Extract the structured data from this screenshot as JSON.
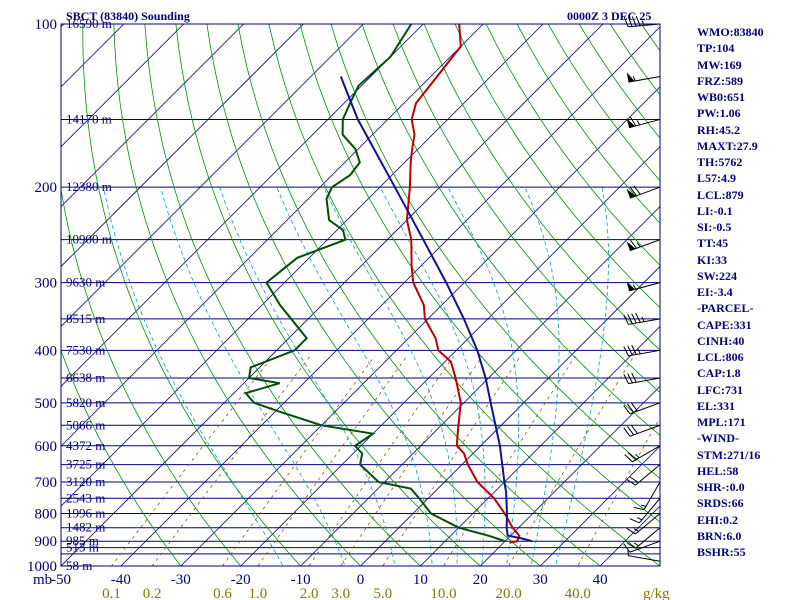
{
  "header": {
    "station_title": "SBCT (83840) Sounding",
    "time_label": "0000Z  3 DEC 25"
  },
  "sidebar": {
    "items": [
      "WMO:83840",
      "TP:104",
      "MW:169",
      "FRZ:589",
      "WB0:651",
      "PW:1.06",
      "RH:45.2",
      "MAXT:27.9",
      "TH:5762",
      "L57:4.9",
      "LCL:879",
      "LI:-0.1",
      "SI:-0.5",
      "TT:45",
      "KI:33",
      "SW:224",
      "EI:-3.4",
      "-PARCEL-",
      "CAPE:331",
      "CINH:40",
      "LCL:806",
      "CAP:1.8",
      "LFC:731",
      "EL:331",
      "MPL:171",
      "-WIND-",
      "STM:271/16",
      "HEL:58",
      "SHR-:0.0",
      "SRDS:66",
      "EHI:0.2",
      "BRN:6.0",
      "BSHR:55"
    ]
  },
  "chart_data": {
    "type": "line",
    "title": "SBCT (83840) Sounding",
    "subtitle": "0000Z  3 DEC 25",
    "y_axis_unit": "mb",
    "y_scale": "log-pressure",
    "ylim": [
      1000,
      100
    ],
    "xlim": [
      -50,
      50
    ],
    "skew": true,
    "pressure_ticks": [
      100,
      200,
      300,
      400,
      500,
      600,
      700,
      800,
      900,
      1000
    ],
    "pressure_tick_labels": [
      "100",
      "200",
      "300",
      "400",
      "500",
      "600",
      "700",
      "800",
      "900",
      "1000"
    ],
    "temperature_ticks": [
      -50,
      -40,
      -30,
      -20,
      -10,
      0,
      10,
      20,
      30,
      40
    ],
    "temperature_tick_labels": [
      "-50",
      "-40",
      "-30",
      "-20",
      "-10",
      "0",
      "10",
      "20",
      "30",
      "40"
    ],
    "mixing_ratio_ticks": [
      0.1,
      0.2,
      0.6,
      1.0,
      2.0,
      3.0,
      5.0,
      10.0,
      20.0,
      40.0
    ],
    "mixing_ratio_tick_labels": [
      "0.1",
      "0.2",
      "0.6",
      "1.0",
      "2.0",
      "3.0",
      "5.0",
      "10.0",
      "20.0",
      "40.0"
    ],
    "mixing_ratio_unit": "g/kg",
    "height_labels": [
      {
        "p": 100,
        "text": "16590 m"
      },
      {
        "p": 150,
        "text": "14170 m"
      },
      {
        "p": 200,
        "text": "12380 m"
      },
      {
        "p": 250,
        "text": "10900 m"
      },
      {
        "p": 300,
        "text": "9630 m"
      },
      {
        "p": 350,
        "text": "8515 m"
      },
      {
        "p": 400,
        "text": "7530 m"
      },
      {
        "p": 450,
        "text": "6638 m"
      },
      {
        "p": 500,
        "text": "5820 m"
      },
      {
        "p": 550,
        "text": "5066 m"
      },
      {
        "p": 600,
        "text": "4372 m"
      },
      {
        "p": 650,
        "text": "3725 m"
      },
      {
        "p": 700,
        "text": "3120 m"
      },
      {
        "p": 750,
        "text": "2543 m"
      },
      {
        "p": 800,
        "text": "1996 m"
      },
      {
        "p": 850,
        "text": "1482 m"
      },
      {
        "p": 900,
        "text": "985 m"
      },
      {
        "p": 925,
        "text": "513 m"
      },
      {
        "p": 1000,
        "text": "58 m"
      }
    ],
    "series": [
      {
        "role": "temperature",
        "color": "#c00000",
        "points": [
          [
            906,
            21.0
          ],
          [
            900,
            22.0
          ],
          [
            880,
            21.5
          ],
          [
            850,
            19.0
          ],
          [
            800,
            15.3
          ],
          [
            750,
            11.0
          ],
          [
            700,
            5.5
          ],
          [
            650,
            1.0
          ],
          [
            620,
            -1.5
          ],
          [
            600,
            -4.0
          ],
          [
            560,
            -6.5
          ],
          [
            500,
            -10.5
          ],
          [
            450,
            -15.5
          ],
          [
            420,
            -19.0
          ],
          [
            400,
            -23.0
          ],
          [
            380,
            -25.5
          ],
          [
            350,
            -30.5
          ],
          [
            330,
            -33.0
          ],
          [
            300,
            -38.5
          ],
          [
            280,
            -41.5
          ],
          [
            250,
            -46.0
          ],
          [
            230,
            -50.0
          ],
          [
            200,
            -55.0
          ],
          [
            180,
            -59.0
          ],
          [
            170,
            -61.0
          ],
          [
            160,
            -63.0
          ],
          [
            150,
            -66.0
          ],
          [
            140,
            -68.0
          ],
          [
            110,
            -70.0
          ],
          [
            100,
            -74.0
          ]
        ]
      },
      {
        "role": "dewpoint",
        "color": "#005000",
        "points": [
          [
            900,
            20.0
          ],
          [
            880,
            16.5
          ],
          [
            850,
            10.0
          ],
          [
            800,
            3.0
          ],
          [
            750,
            -1.5
          ],
          [
            720,
            -4.5
          ],
          [
            700,
            -11.0
          ],
          [
            650,
            -17.0
          ],
          [
            620,
            -18.5
          ],
          [
            600,
            -21.0
          ],
          [
            570,
            -20.0
          ],
          [
            550,
            -30.0
          ],
          [
            520,
            -39.0
          ],
          [
            500,
            -45.0
          ],
          [
            480,
            -48.0
          ],
          [
            460,
            -44.0
          ],
          [
            450,
            -50.0
          ],
          [
            430,
            -51.5
          ],
          [
            420,
            -50.0
          ],
          [
            400,
            -47.0
          ],
          [
            380,
            -47.0
          ],
          [
            330,
            -57.0
          ],
          [
            300,
            -63.0
          ],
          [
            270,
            -62.0
          ],
          [
            250,
            -57.0
          ],
          [
            240,
            -59.0
          ],
          [
            230,
            -63.0
          ],
          [
            210,
            -67.0
          ],
          [
            200,
            -68.0
          ],
          [
            190,
            -67.0
          ],
          [
            180,
            -67.5
          ],
          [
            170,
            -70.5
          ],
          [
            160,
            -75.0
          ],
          [
            150,
            -77.5
          ],
          [
            140,
            -79.0
          ],
          [
            130,
            -80.5
          ],
          [
            115,
            -80.0
          ],
          [
            100,
            -82.0
          ]
        ]
      },
      {
        "role": "parcel",
        "color": "#1010a0",
        "points": [
          [
            900,
            24.5
          ],
          [
            890,
            22.5
          ],
          [
            879,
            19.5
          ],
          [
            850,
            18.0
          ],
          [
            806,
            16.0
          ],
          [
            731,
            12.0
          ],
          [
            700,
            10.0
          ],
          [
            600,
            3.2
          ],
          [
            500,
            -5.5
          ],
          [
            450,
            -10.5
          ],
          [
            400,
            -16.5
          ],
          [
            350,
            -24.0
          ],
          [
            300,
            -33.0
          ],
          [
            250,
            -44.0
          ],
          [
            200,
            -57.5
          ],
          [
            150,
            -75.0
          ],
          [
            125,
            -85.0
          ]
        ]
      }
    ],
    "wind_barbs": [
      {
        "p": 980,
        "dir": 280,
        "kt": 5
      },
      {
        "p": 900,
        "dir": 250,
        "kt": 10
      },
      {
        "p": 850,
        "dir": 230,
        "kt": 15
      },
      {
        "p": 800,
        "dir": 230,
        "kt": 15
      },
      {
        "p": 750,
        "dir": 220,
        "kt": 15
      },
      {
        "p": 700,
        "dir": 210,
        "kt": 15
      },
      {
        "p": 650,
        "dir": 230,
        "kt": 20
      },
      {
        "p": 600,
        "dir": 240,
        "kt": 25
      },
      {
        "p": 550,
        "dir": 250,
        "kt": 30
      },
      {
        "p": 500,
        "dir": 250,
        "kt": 30
      },
      {
        "p": 450,
        "dir": 260,
        "kt": 30
      },
      {
        "p": 400,
        "dir": 260,
        "kt": 35
      },
      {
        "p": 350,
        "dir": 260,
        "kt": 45
      },
      {
        "p": 300,
        "dir": 255,
        "kt": 55
      },
      {
        "p": 250,
        "dir": 250,
        "kt": 65
      },
      {
        "p": 200,
        "dir": 250,
        "kt": 70
      },
      {
        "p": 150,
        "dir": 255,
        "kt": 65
      },
      {
        "p": 125,
        "dir": 260,
        "kt": 55
      },
      {
        "p": 100,
        "dir": 265,
        "kt": 45
      }
    ],
    "grid": true
  },
  "colors": {
    "frame": "#000080",
    "isotherm": "#000080",
    "dry_adiabat": "#009000",
    "moist_adiabat": "#00a0c0",
    "mixing_ratio": "#806000",
    "mixing_ratio_label": "#8B7500",
    "barb": "#000000"
  }
}
